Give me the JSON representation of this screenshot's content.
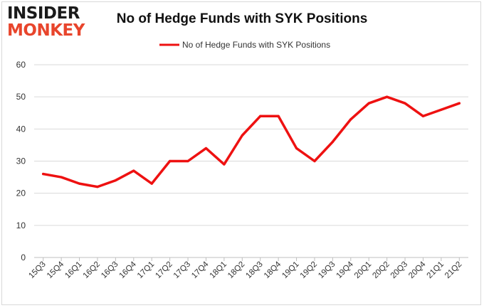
{
  "logo": {
    "line1": "INSIDER",
    "line2": "MONKEY"
  },
  "colors": {
    "series": "#ee1111",
    "grid": "#d9d9d9",
    "logo_accent": "#e8452c"
  },
  "chart_data": {
    "type": "line",
    "title": "No of Hedge Funds with SYK Positions",
    "xlabel": "",
    "ylabel": "",
    "ylim": [
      0,
      60
    ],
    "yticks": [
      0,
      10,
      20,
      30,
      40,
      50,
      60
    ],
    "grid": true,
    "legend_position": "top-center",
    "categories": [
      "15Q3",
      "15Q4",
      "16Q1",
      "16Q2",
      "16Q3",
      "16Q4",
      "17Q1",
      "17Q2",
      "17Q3",
      "17Q4",
      "18Q1",
      "18Q2",
      "18Q3",
      "18Q4",
      "19Q1",
      "19Q2",
      "19Q3",
      "19Q4",
      "20Q1",
      "20Q2",
      "20Q3",
      "20Q4",
      "21Q1",
      "21Q2"
    ],
    "series": [
      {
        "name": "No of Hedge Funds with SYK Positions",
        "values": [
          26,
          25,
          23,
          22,
          24,
          27,
          23,
          30,
          30,
          34,
          29,
          38,
          44,
          44,
          34,
          30,
          36,
          43,
          48,
          50,
          48,
          44,
          46,
          48
        ]
      }
    ]
  }
}
